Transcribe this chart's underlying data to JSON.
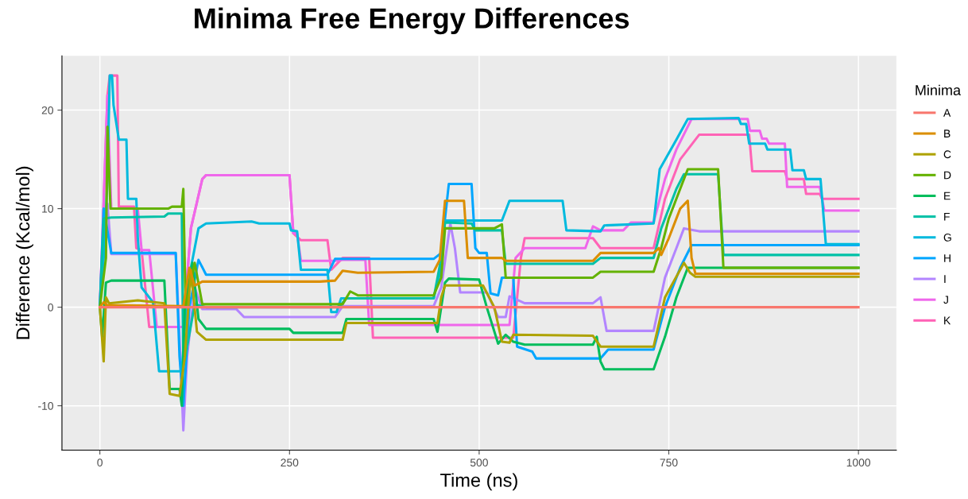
{
  "chart_data": {
    "type": "line",
    "title": "Minima Free Energy Differences",
    "xlabel": "Time (ns)",
    "ylabel": "Difference (Kcal/mol)",
    "legend_title": "Minima",
    "legend": "right",
    "grid": true,
    "xlim": [
      -50,
      1050
    ],
    "ylim": [
      -14.5,
      25.5
    ],
    "xticks": [
      0,
      250,
      500,
      750,
      1000
    ],
    "yticks": [
      -10,
      0,
      10,
      20
    ],
    "series": [
      {
        "name": "A",
        "color": "#F8766D",
        "x": [
          0,
          1000
        ],
        "values": [
          0,
          0
        ]
      },
      {
        "name": "B",
        "color": "#DB8E00",
        "x": [
          0,
          5,
          10,
          110,
          118,
          125,
          135,
          290,
          310,
          320,
          340,
          440,
          448,
          455,
          480,
          485,
          530,
          535,
          650,
          660,
          730,
          737,
          740,
          750,
          765,
          775,
          780,
          785,
          1000
        ],
        "values": [
          0,
          0.5,
          0.2,
          0.1,
          4,
          2.2,
          2.6,
          2.6,
          2.7,
          3.7,
          3.5,
          3.6,
          4.8,
          10.8,
          10.8,
          5,
          5,
          4.7,
          4.7,
          5.5,
          5.5,
          6,
          5.3,
          7,
          10,
          10.8,
          5,
          3.4,
          3.4
        ]
      },
      {
        "name": "C",
        "color": "#AEA200",
        "x": [
          0,
          5,
          8,
          12,
          50,
          85,
          92,
          105,
          112,
          120,
          128,
          140,
          320,
          325,
          445,
          450,
          455,
          505,
          520,
          530,
          540,
          545,
          650,
          660,
          730,
          745,
          770,
          778,
          785,
          1000
        ],
        "values": [
          0,
          -5.5,
          1,
          0.4,
          0.7,
          0.4,
          -8.8,
          -9,
          -5,
          3.8,
          -2.5,
          -3.3,
          -3.3,
          -1.6,
          -1.6,
          1,
          2.2,
          2.2,
          0,
          -3.5,
          -3.6,
          -2.8,
          -2.9,
          -4,
          -4,
          1,
          4.5,
          3.5,
          3.1,
          3.1
        ]
      },
      {
        "name": "D",
        "color": "#64B200",
        "x": [
          0,
          8,
          10,
          14,
          90,
          95,
          108,
          110,
          113,
          125,
          135,
          320,
          330,
          340,
          440,
          450,
          455,
          520,
          530,
          535,
          650,
          660,
          730,
          740,
          750,
          765,
          775,
          815,
          822,
          1000
        ],
        "values": [
          0,
          5,
          18.3,
          10,
          10,
          10.2,
          10.2,
          12,
          0,
          4.5,
          0.3,
          0.3,
          1.6,
          1.2,
          1.2,
          3,
          8,
          8,
          8.4,
          3,
          3,
          3.6,
          3.6,
          6,
          9,
          12,
          14,
          14,
          4,
          4
        ]
      },
      {
        "name": "E",
        "color": "#00BD5C",
        "x": [
          0,
          3,
          8,
          15,
          85,
          92,
          105,
          108,
          112,
          122,
          130,
          140,
          250,
          255,
          320,
          325,
          440,
          445,
          455,
          460,
          500,
          510,
          525,
          535,
          545,
          560,
          650,
          655,
          660,
          665,
          730,
          745,
          760,
          775,
          1000
        ],
        "values": [
          0,
          -3,
          2.5,
          2.7,
          2.7,
          -8.3,
          -8.3,
          -10,
          0,
          4.5,
          -1.2,
          -2.2,
          -2.2,
          -2.6,
          -2.6,
          -1.2,
          -1.2,
          -2.5,
          2.5,
          2.9,
          2.8,
          0,
          -3.7,
          -2.8,
          -3.5,
          -3.8,
          -3.8,
          -3,
          -5.5,
          -6.3,
          -6.3,
          -3,
          1,
          4,
          4
        ]
      },
      {
        "name": "F",
        "color": "#00C1A7",
        "x": [
          0,
          5,
          15,
          85,
          90,
          108,
          110,
          115,
          125,
          140,
          315,
          325,
          440,
          450,
          455,
          490,
          495,
          530,
          535,
          650,
          660,
          730,
          740,
          760,
          770,
          815,
          822,
          1000
        ],
        "values": [
          0,
          9,
          9.1,
          9.2,
          9.5,
          9.5,
          -6,
          -4,
          0.3,
          0,
          0,
          0.9,
          0.9,
          5,
          8.6,
          8.5,
          7.8,
          7.8,
          4.4,
          4.4,
          5,
          5,
          8,
          12,
          13.5,
          13.5,
          5.3,
          5.3
        ]
      },
      {
        "name": "G",
        "color": "#00BADE",
        "x": [
          0,
          5,
          10,
          13,
          16,
          18,
          25,
          35,
          37,
          48,
          50,
          55,
          70,
          78,
          108,
          112,
          120,
          130,
          140,
          200,
          210,
          250,
          252,
          260,
          265,
          300,
          305,
          312,
          318,
          440,
          450,
          455,
          530,
          540,
          610,
          615,
          660,
          665,
          730,
          738,
          760,
          775,
          842,
          845,
          852,
          856,
          877,
          880,
          910,
          913,
          928,
          931,
          950,
          957,
          1000
        ],
        "values": [
          0,
          5,
          13,
          23.5,
          23.5,
          20.5,
          17,
          17,
          11,
          11,
          7,
          2,
          0.5,
          -6.5,
          -6.5,
          -2,
          4,
          8,
          8.5,
          8.7,
          8.5,
          8.5,
          7.8,
          7.7,
          3.8,
          3.8,
          -0.5,
          -0.5,
          0.9,
          0.9,
          4,
          8.8,
          8.8,
          10.8,
          10.8,
          7.8,
          7.7,
          8.3,
          8.5,
          14,
          17,
          19.1,
          19.2,
          18.6,
          18.6,
          16.6,
          16.6,
          16,
          16,
          13.9,
          13.9,
          13,
          13,
          6.4,
          6.4
        ]
      },
      {
        "name": "H",
        "color": "#00A6FF",
        "x": [
          0,
          5,
          15,
          100,
          105,
          110,
          118,
          130,
          140,
          300,
          310,
          440,
          450,
          460,
          490,
          495,
          500,
          510,
          515,
          525,
          530,
          545,
          550,
          570,
          575,
          660,
          670,
          730,
          745,
          765,
          780,
          1000
        ],
        "values": [
          0,
          10,
          5.5,
          5.5,
          -5,
          -10,
          0,
          4.8,
          3.3,
          3.3,
          4.9,
          4.9,
          5.5,
          12.5,
          12.5,
          6,
          5.5,
          5.5,
          1.4,
          1.2,
          3,
          3,
          -4,
          -4.5,
          -5.2,
          -5.2,
          -4.3,
          -4.3,
          0,
          4,
          6.3,
          6.3
        ]
      },
      {
        "name": "I",
        "color": "#B385FF",
        "x": [
          0,
          5,
          10,
          15,
          100,
          105,
          110,
          115,
          125,
          135,
          180,
          190,
          310,
          320,
          440,
          450,
          462,
          468,
          475,
          510,
          525,
          535,
          540,
          560,
          650,
          660,
          668,
          730,
          745,
          760,
          770,
          790,
          1000
        ],
        "values": [
          0,
          8,
          10.5,
          5.4,
          5.4,
          -3,
          -12.5,
          -5,
          2,
          -0.2,
          -0.2,
          -1,
          -1,
          0.1,
          0.1,
          2,
          8.5,
          6,
          1.5,
          1.5,
          -1,
          -1,
          1.1,
          0.4,
          0.4,
          1,
          -2.4,
          -2.4,
          3,
          6,
          8,
          7.7,
          7.7
        ]
      },
      {
        "name": "J",
        "color": "#EF67EB",
        "x": [
          0,
          5,
          10,
          15,
          50,
          55,
          65,
          75,
          110,
          120,
          135,
          140,
          250,
          255,
          260,
          265,
          310,
          320,
          350,
          355,
          540,
          548,
          560,
          640,
          650,
          660,
          690,
          700,
          730,
          745,
          760,
          780,
          854,
          857,
          870,
          873,
          879,
          882,
          903,
          906,
          949,
          955,
          1000
        ],
        "values": [
          0,
          10.8,
          21.5,
          10,
          10,
          5.8,
          5.8,
          -2,
          -2,
          8,
          13,
          13.4,
          13.4,
          7.5,
          7.5,
          4.7,
          4.7,
          4.8,
          4.8,
          -1.8,
          -1.8,
          5,
          6,
          6,
          8.2,
          7.8,
          7.8,
          8.6,
          8.6,
          13,
          16,
          19.1,
          19.1,
          17.9,
          17.9,
          17.1,
          17.1,
          16.6,
          16.6,
          12.2,
          12.2,
          9.8,
          9.8
        ]
      },
      {
        "name": "K",
        "color": "#FF63B6",
        "x": [
          0,
          5,
          10,
          13,
          23,
          25,
          45,
          48,
          55,
          65,
          110,
          120,
          135,
          140,
          250,
          255,
          265,
          300,
          305,
          320,
          355,
          360,
          545,
          555,
          560,
          650,
          660,
          730,
          745,
          765,
          790,
          856,
          860,
          903,
          906,
          928,
          931,
          949,
          952,
          1000
        ],
        "values": [
          0,
          10.5,
          21.5,
          23.5,
          23.5,
          10.2,
          10.2,
          6,
          5.8,
          -2,
          -2,
          8,
          13,
          13.4,
          13.4,
          7.5,
          6.8,
          6.8,
          3.8,
          5,
          5,
          -3.1,
          -3.1,
          5,
          7,
          7,
          6,
          6,
          11,
          15,
          17.5,
          17.5,
          13.8,
          13.8,
          13,
          13,
          11.5,
          11.5,
          11,
          11
        ]
      }
    ]
  }
}
